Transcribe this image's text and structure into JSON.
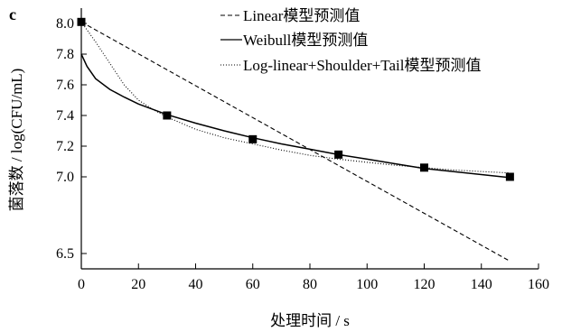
{
  "chart_data": {
    "type": "line",
    "panel_label": "c",
    "xlabel": "处理时间 / s",
    "ylabel": "菌落数 / log(CFU/mL)",
    "xlim": [
      0,
      160
    ],
    "ylim": [
      6.4,
      8.1
    ],
    "xticks": [
      "0",
      "20",
      "40",
      "60",
      "80",
      "100",
      "120",
      "140",
      "160"
    ],
    "yticks": [
      "6.5",
      "7.0",
      "7.2",
      "7.4",
      "7.6",
      "7.8",
      "8.0"
    ],
    "legend_position": "top-right",
    "observed": {
      "x": [
        0,
        30,
        60,
        90,
        120,
        150
      ],
      "y": [
        8.01,
        7.4,
        7.245,
        7.145,
        7.06,
        7.0
      ]
    },
    "series": [
      {
        "name": "Linear模型预测值",
        "style": "dashed",
        "x": [
          0,
          150
        ],
        "y": [
          8.01,
          6.45
        ]
      },
      {
        "name": "Weibull模型预测值",
        "style": "solid",
        "x": [
          0,
          2,
          5,
          10,
          15,
          20,
          25,
          30,
          40,
          50,
          60,
          70,
          80,
          90,
          100,
          110,
          120,
          130,
          140,
          150
        ],
        "y": [
          7.8,
          7.72,
          7.64,
          7.57,
          7.52,
          7.475,
          7.44,
          7.405,
          7.35,
          7.3,
          7.255,
          7.215,
          7.18,
          7.145,
          7.115,
          7.085,
          7.055,
          7.035,
          7.015,
          6.995
        ]
      },
      {
        "name": "Log-linear+Shoulder+Tail模型预测值",
        "style": "dotted",
        "x": [
          0,
          5,
          10,
          15,
          20,
          25,
          30,
          40,
          50,
          60,
          70,
          80,
          90,
          100,
          110,
          120,
          130,
          140,
          150
        ],
        "y": [
          8.01,
          7.88,
          7.74,
          7.6,
          7.5,
          7.44,
          7.39,
          7.31,
          7.255,
          7.215,
          7.175,
          7.14,
          7.115,
          7.095,
          7.075,
          7.06,
          7.045,
          7.035,
          7.025
        ]
      }
    ]
  }
}
